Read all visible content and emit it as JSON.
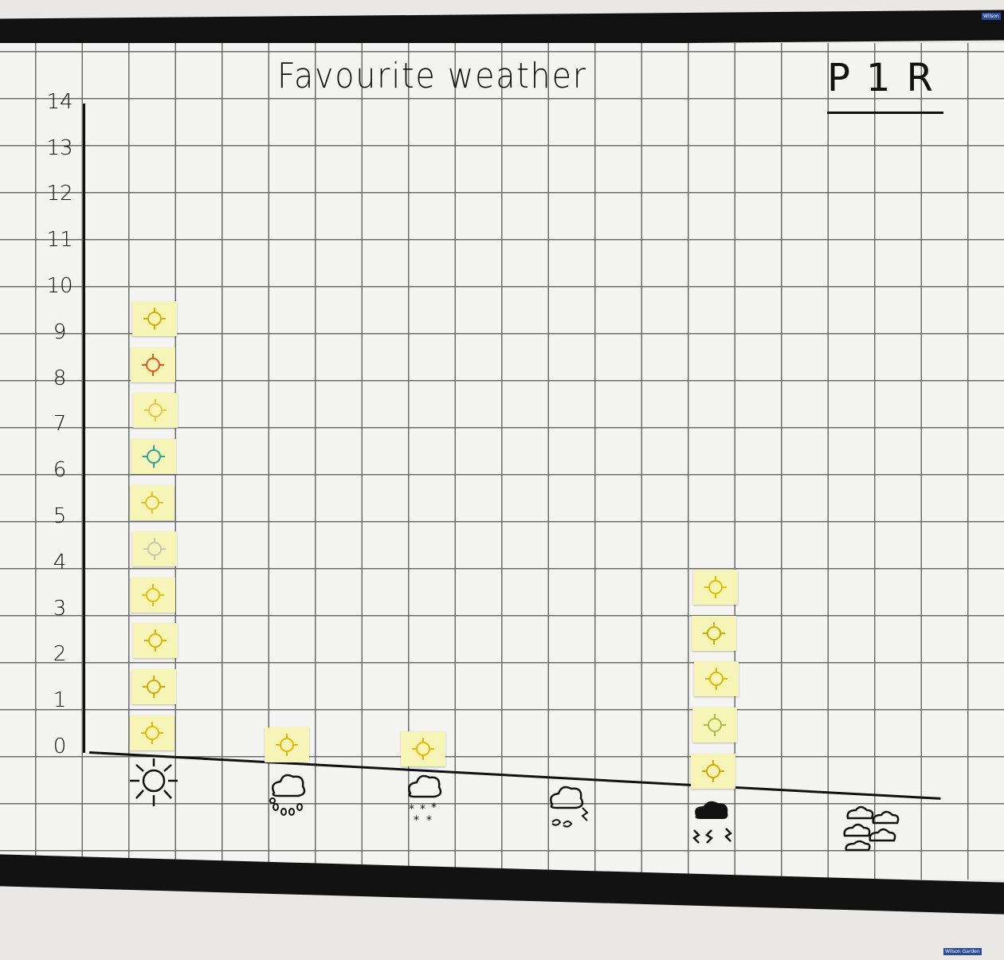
{
  "board": {
    "brand_label": "Wilson",
    "brand_label_bottom": "Wilson Garden"
  },
  "chart_data": {
    "type": "bar",
    "style": "pictograph (one sticky note per vote)",
    "title": "Favourite weather",
    "class_label": "P1R",
    "xlabel": "",
    "ylabel": "",
    "ylim": [
      0,
      14
    ],
    "y_ticks": [
      "0",
      "1",
      "2",
      "3",
      "4",
      "5",
      "6",
      "7",
      "8",
      "9",
      "10",
      "11",
      "12",
      "13",
      "14"
    ],
    "categories": [
      "sunny-icon",
      "rainy-icon",
      "snowy-icon",
      "windy-icon",
      "stormy-icon",
      "cloudy-icon"
    ],
    "values": [
      10,
      1,
      1,
      0,
      5,
      0
    ],
    "grid": true,
    "colors": {
      "sticky_note": "#f7f4b8",
      "ink": "#111111",
      "board": "#f4f4f2"
    }
  }
}
